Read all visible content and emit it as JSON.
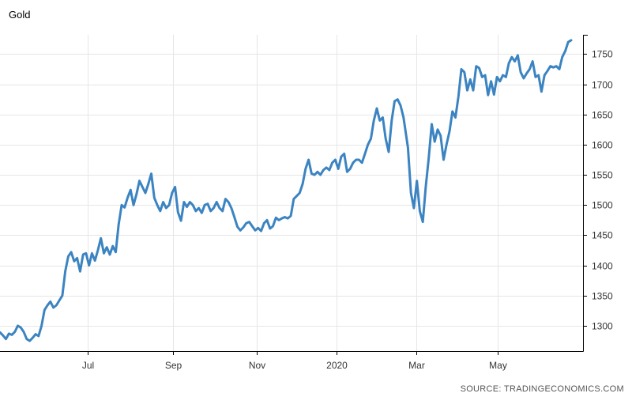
{
  "source": "SOURCE: TRADINGECONOMICS.COM",
  "colors": {
    "line": "#3c84c1",
    "grid": "#e6e6e6",
    "axis": "#000000"
  },
  "chart_data": {
    "type": "line",
    "title": "Gold",
    "xlabel": "",
    "ylabel": "",
    "x_tick_labels": [
      "Jul",
      "Sep",
      "Nov",
      "2020",
      "Mar",
      "May"
    ],
    "y_ticks": [
      1300,
      1350,
      1400,
      1450,
      1500,
      1550,
      1600,
      1650,
      1700,
      1750
    ],
    "ylim": [
      1258,
      1782
    ],
    "x_range": [
      "2019-06-01",
      "2020-06-28"
    ],
    "grid": true,
    "legend": "none",
    "y_axis_side": "right",
    "series": [
      {
        "points": [
          [
            "2019-06-01",
            1289
          ],
          [
            "2019-06-03",
            1284
          ],
          [
            "2019-06-05",
            1278
          ],
          [
            "2019-06-07",
            1287
          ],
          [
            "2019-06-09",
            1285
          ],
          [
            "2019-06-11",
            1290
          ],
          [
            "2019-06-13",
            1300
          ],
          [
            "2019-06-15",
            1297
          ],
          [
            "2019-06-17",
            1290
          ],
          [
            "2019-06-19",
            1278
          ],
          [
            "2019-06-21",
            1275
          ],
          [
            "2019-06-23",
            1280
          ],
          [
            "2019-06-25",
            1286
          ],
          [
            "2019-06-27",
            1283
          ],
          [
            "2019-06-29",
            1300
          ],
          [
            "2019-07-01",
            1326
          ],
          [
            "2019-07-03",
            1334
          ],
          [
            "2019-07-05",
            1340
          ],
          [
            "2019-07-07",
            1330
          ],
          [
            "2019-07-09",
            1334
          ],
          [
            "2019-07-11",
            1342
          ],
          [
            "2019-07-13",
            1350
          ],
          [
            "2019-07-15",
            1390
          ],
          [
            "2019-07-17",
            1415
          ],
          [
            "2019-07-19",
            1422
          ],
          [
            "2019-07-21",
            1407
          ],
          [
            "2019-07-23",
            1412
          ],
          [
            "2019-07-25",
            1390
          ],
          [
            "2019-07-27",
            1418
          ],
          [
            "2019-07-29",
            1420
          ],
          [
            "2019-07-31",
            1400
          ],
          [
            "2019-08-02",
            1420
          ],
          [
            "2019-08-04",
            1408
          ],
          [
            "2019-08-06",
            1425
          ],
          [
            "2019-08-08",
            1445
          ],
          [
            "2019-08-10",
            1420
          ],
          [
            "2019-08-12",
            1430
          ],
          [
            "2019-08-14",
            1418
          ],
          [
            "2019-08-16",
            1432
          ],
          [
            "2019-08-18",
            1422
          ],
          [
            "2019-08-20",
            1468
          ],
          [
            "2019-08-22",
            1500
          ],
          [
            "2019-08-24",
            1496
          ],
          [
            "2019-08-26",
            1512
          ],
          [
            "2019-08-28",
            1525
          ],
          [
            "2019-08-30",
            1500
          ],
          [
            "2019-09-01",
            1518
          ],
          [
            "2019-09-03",
            1540
          ],
          [
            "2019-09-05",
            1530
          ],
          [
            "2019-09-07",
            1520
          ],
          [
            "2019-09-09",
            1535
          ],
          [
            "2019-09-11",
            1552
          ],
          [
            "2019-09-13",
            1512
          ],
          [
            "2019-09-15",
            1500
          ],
          [
            "2019-09-17",
            1490
          ],
          [
            "2019-09-19",
            1505
          ],
          [
            "2019-09-21",
            1495
          ],
          [
            "2019-09-23",
            1500
          ],
          [
            "2019-09-25",
            1520
          ],
          [
            "2019-09-27",
            1530
          ],
          [
            "2019-09-29",
            1488
          ],
          [
            "2019-10-01",
            1474
          ],
          [
            "2019-10-03",
            1505
          ],
          [
            "2019-10-05",
            1497
          ],
          [
            "2019-10-07",
            1505
          ],
          [
            "2019-10-09",
            1500
          ],
          [
            "2019-10-11",
            1490
          ],
          [
            "2019-10-13",
            1495
          ],
          [
            "2019-10-15",
            1487
          ],
          [
            "2019-10-17",
            1500
          ],
          [
            "2019-10-19",
            1502
          ],
          [
            "2019-10-21",
            1490
          ],
          [
            "2019-10-23",
            1495
          ],
          [
            "2019-10-25",
            1505
          ],
          [
            "2019-10-27",
            1495
          ],
          [
            "2019-10-29",
            1490
          ],
          [
            "2019-10-31",
            1510
          ],
          [
            "2019-11-02",
            1505
          ],
          [
            "2019-11-04",
            1495
          ],
          [
            "2019-11-06",
            1480
          ],
          [
            "2019-11-08",
            1464
          ],
          [
            "2019-11-10",
            1458
          ],
          [
            "2019-11-12",
            1463
          ],
          [
            "2019-11-14",
            1470
          ],
          [
            "2019-11-16",
            1472
          ],
          [
            "2019-11-18",
            1465
          ],
          [
            "2019-11-20",
            1458
          ],
          [
            "2019-11-22",
            1462
          ],
          [
            "2019-11-24",
            1457
          ],
          [
            "2019-11-26",
            1470
          ],
          [
            "2019-11-28",
            1475
          ],
          [
            "2019-11-30",
            1461
          ],
          [
            "2019-12-02",
            1465
          ],
          [
            "2019-12-04",
            1479
          ],
          [
            "2019-12-06",
            1475
          ],
          [
            "2019-12-08",
            1478
          ],
          [
            "2019-12-10",
            1480
          ],
          [
            "2019-12-12",
            1478
          ],
          [
            "2019-12-14",
            1482
          ],
          [
            "2019-12-16",
            1510
          ],
          [
            "2019-12-18",
            1515
          ],
          [
            "2019-12-20",
            1520
          ],
          [
            "2019-12-22",
            1535
          ],
          [
            "2019-12-24",
            1560
          ],
          [
            "2019-12-26",
            1575
          ],
          [
            "2019-12-28",
            1552
          ],
          [
            "2019-12-30",
            1550
          ],
          [
            "2020-01-01",
            1555
          ],
          [
            "2020-01-03",
            1550
          ],
          [
            "2020-01-05",
            1558
          ],
          [
            "2020-01-07",
            1562
          ],
          [
            "2020-01-09",
            1558
          ],
          [
            "2020-01-11",
            1570
          ],
          [
            "2020-01-13",
            1575
          ],
          [
            "2020-01-15",
            1560
          ],
          [
            "2020-01-17",
            1580
          ],
          [
            "2020-01-19",
            1585
          ],
          [
            "2020-01-21",
            1555
          ],
          [
            "2020-01-23",
            1560
          ],
          [
            "2020-01-25",
            1570
          ],
          [
            "2020-01-27",
            1575
          ],
          [
            "2020-01-29",
            1575
          ],
          [
            "2020-01-31",
            1570
          ],
          [
            "2020-02-02",
            1585
          ],
          [
            "2020-02-04",
            1600
          ],
          [
            "2020-02-06",
            1610
          ],
          [
            "2020-02-08",
            1640
          ],
          [
            "2020-02-10",
            1660
          ],
          [
            "2020-02-12",
            1640
          ],
          [
            "2020-02-14",
            1645
          ],
          [
            "2020-02-16",
            1610
          ],
          [
            "2020-02-18",
            1588
          ],
          [
            "2020-02-20",
            1640
          ],
          [
            "2020-02-22",
            1672
          ],
          [
            "2020-02-24",
            1675
          ],
          [
            "2020-02-26",
            1665
          ],
          [
            "2020-02-28",
            1645
          ],
          [
            "2020-03-02",
            1595
          ],
          [
            "2020-03-04",
            1520
          ],
          [
            "2020-03-06",
            1495
          ],
          [
            "2020-03-08",
            1540
          ],
          [
            "2020-03-10",
            1490
          ],
          [
            "2020-03-12",
            1472
          ],
          [
            "2020-03-14",
            1530
          ],
          [
            "2020-03-16",
            1578
          ],
          [
            "2020-03-18",
            1634
          ],
          [
            "2020-03-20",
            1605
          ],
          [
            "2020-03-22",
            1625
          ],
          [
            "2020-03-24",
            1615
          ],
          [
            "2020-03-26",
            1575
          ],
          [
            "2020-03-28",
            1600
          ],
          [
            "2020-03-30",
            1622
          ],
          [
            "2020-04-01",
            1655
          ],
          [
            "2020-04-03",
            1645
          ],
          [
            "2020-04-05",
            1680
          ],
          [
            "2020-04-07",
            1725
          ],
          [
            "2020-04-09",
            1720
          ],
          [
            "2020-04-11",
            1690
          ],
          [
            "2020-04-13",
            1708
          ],
          [
            "2020-04-15",
            1690
          ],
          [
            "2020-04-17",
            1730
          ],
          [
            "2020-04-19",
            1727
          ],
          [
            "2020-04-21",
            1712
          ],
          [
            "2020-04-23",
            1715
          ],
          [
            "2020-04-25",
            1682
          ],
          [
            "2020-04-27",
            1705
          ],
          [
            "2020-04-29",
            1683
          ],
          [
            "2020-05-01",
            1712
          ],
          [
            "2020-05-03",
            1705
          ],
          [
            "2020-05-05",
            1715
          ],
          [
            "2020-05-07",
            1712
          ],
          [
            "2020-05-09",
            1735
          ],
          [
            "2020-05-11",
            1745
          ],
          [
            "2020-05-13",
            1738
          ],
          [
            "2020-05-15",
            1748
          ],
          [
            "2020-05-17",
            1720
          ],
          [
            "2020-05-19",
            1710
          ],
          [
            "2020-05-21",
            1718
          ],
          [
            "2020-05-23",
            1725
          ],
          [
            "2020-05-25",
            1738
          ],
          [
            "2020-05-27",
            1712
          ],
          [
            "2020-05-29",
            1715
          ],
          [
            "2020-05-31",
            1688
          ],
          [
            "2020-06-02",
            1715
          ],
          [
            "2020-06-04",
            1722
          ],
          [
            "2020-06-06",
            1730
          ],
          [
            "2020-06-08",
            1728
          ],
          [
            "2020-06-10",
            1730
          ],
          [
            "2020-06-12",
            1725
          ],
          [
            "2020-06-14",
            1745
          ],
          [
            "2020-06-16",
            1755
          ],
          [
            "2020-06-18",
            1770
          ],
          [
            "2020-06-20",
            1773
          ]
        ]
      }
    ]
  }
}
